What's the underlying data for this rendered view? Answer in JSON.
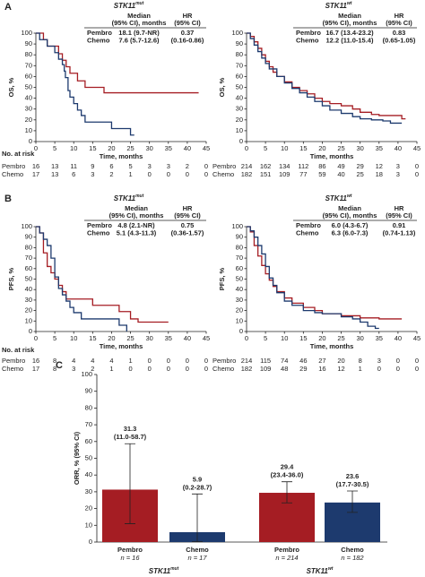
{
  "chart_data": [
    {
      "type": "km",
      "panel": "A",
      "title": "STK11",
      "title_sup": "mut",
      "ylabel": "OS, %",
      "xlabel": "Time, months",
      "xlim": [
        0,
        45
      ],
      "xticks": [
        0,
        5,
        10,
        15,
        20,
        25,
        30,
        35,
        40,
        45
      ],
      "ylim": [
        0,
        100
      ],
      "yticks": [
        0,
        10,
        20,
        30,
        40,
        50,
        60,
        70,
        80,
        90,
        100
      ],
      "legend_header": [
        "Median",
        "(95% CI), months"
      ],
      "hr_header": [
        "HR",
        "(95% CI)"
      ],
      "hr": 0.37,
      "hr_ci": "(0.16-0.86)",
      "risk_label": "No. at risk",
      "series": [
        {
          "name": "Pembro",
          "color": "#a51d23",
          "median": "18.1 (9.7-NR)",
          "x": [
            0,
            2,
            3,
            6,
            7,
            8,
            9,
            11,
            13,
            18,
            43
          ],
          "values": [
            100,
            94,
            88,
            81,
            75,
            69,
            63,
            56,
            50,
            45,
            45
          ],
          "at_risk": [
            16,
            13,
            11,
            9,
            6,
            5,
            3,
            3,
            2,
            0
          ]
        },
        {
          "name": "Chemo",
          "color": "#1d3a6e",
          "median": "7.6 (5.7-12.6)",
          "x": [
            0,
            1,
            3,
            5,
            6,
            7,
            7.5,
            7.8,
            8.5,
            9,
            10,
            11,
            12,
            13,
            20,
            25,
            26
          ],
          "values": [
            100,
            94,
            88,
            82,
            76,
            71,
            65,
            59,
            47,
            41,
            35,
            29,
            24,
            18,
            12,
            6,
            6
          ],
          "at_risk": [
            17,
            13,
            6,
            3,
            2,
            1,
            0,
            0,
            0,
            0
          ]
        }
      ]
    },
    {
      "type": "km",
      "title": "STK11",
      "title_sup": "wt",
      "ylabel": "OS, %",
      "xlabel": "Time, months",
      "xlim": [
        0,
        45
      ],
      "xticks": [
        0,
        5,
        10,
        15,
        20,
        25,
        30,
        35,
        40,
        45
      ],
      "ylim": [
        0,
        100
      ],
      "yticks": [
        0,
        10,
        20,
        30,
        40,
        50,
        60,
        70,
        80,
        90,
        100
      ],
      "legend_header": [
        "Median",
        "(95% CI), months"
      ],
      "hr_header": [
        "HR",
        "(95% CI)"
      ],
      "hr": 0.83,
      "hr_ci": "(0.65-1.05)",
      "series": [
        {
          "name": "Pembro",
          "color": "#a51d23",
          "median": "16.7 (13.4-23.2)",
          "x": [
            0,
            1,
            2,
            3,
            4,
            5,
            6,
            7,
            8,
            10,
            12,
            14,
            16,
            18,
            20,
            22,
            25,
            28,
            30,
            33,
            35,
            41,
            42
          ],
          "values": [
            100,
            97,
            92,
            86,
            80,
            74,
            69,
            64,
            60,
            55,
            50,
            47,
            44,
            40,
            37,
            35,
            33,
            30,
            27,
            25,
            24,
            21,
            21
          ],
          "at_risk": [
            214,
            162,
            134,
            112,
            86,
            49,
            29,
            12,
            3,
            0
          ]
        },
        {
          "name": "Chemo",
          "color": "#1d3a6e",
          "median": "12.2 (11.0-15.4)",
          "x": [
            0,
            1,
            2,
            3,
            4,
            5,
            6,
            8,
            10,
            12,
            14,
            16,
            18,
            20,
            22,
            25,
            28,
            30,
            33,
            36,
            38,
            41
          ],
          "values": [
            100,
            95,
            89,
            83,
            77,
            72,
            67,
            60,
            54,
            49,
            45,
            41,
            37,
            33,
            29,
            26,
            23,
            21,
            20,
            19,
            17,
            17
          ],
          "at_risk": [
            182,
            151,
            109,
            77,
            59,
            40,
            25,
            18,
            3,
            0
          ]
        }
      ]
    },
    {
      "type": "km",
      "panel": "B",
      "title": "STK11",
      "title_sup": "mut",
      "ylabel": "PFS, %",
      "xlabel": "Time, months",
      "xlim": [
        0,
        45
      ],
      "xticks": [
        0,
        5,
        10,
        15,
        20,
        25,
        30,
        35,
        40,
        45
      ],
      "ylim": [
        0,
        100
      ],
      "yticks": [
        0,
        10,
        20,
        30,
        40,
        50,
        60,
        70,
        80,
        90,
        100
      ],
      "legend_header": [
        "Median",
        "(95% CI), months"
      ],
      "hr_header": [
        "HR",
        "(95% CI)"
      ],
      "hr": 0.75,
      "hr_ci": "(0.36-1.57)",
      "risk_label": "No. at risk",
      "series": [
        {
          "name": "Pembro",
          "color": "#a51d23",
          "median": "4.8 (2.1-NR)",
          "x": [
            0,
            1,
            2,
            3,
            4,
            5,
            6,
            7,
            8,
            15,
            22,
            25,
            27,
            35
          ],
          "values": [
            100,
            94,
            75,
            62,
            56,
            50,
            44,
            38,
            31,
            25,
            19,
            12,
            9,
            9
          ],
          "at_risk": [
            16,
            8,
            4,
            4,
            4,
            1,
            0,
            0,
            0,
            0
          ]
        },
        {
          "name": "Chemo",
          "color": "#1d3a6e",
          "median": "5.1 (4.3-11.3)",
          "x": [
            0,
            1,
            2,
            3,
            4,
            5,
            6,
            7,
            8,
            9,
            10,
            12,
            22,
            24
          ],
          "values": [
            100,
            94,
            88,
            82,
            70,
            52,
            41,
            35,
            29,
            23,
            18,
            12,
            6,
            0
          ],
          "at_risk": [
            17,
            8,
            3,
            2,
            1,
            0,
            0,
            0,
            0,
            0
          ]
        }
      ]
    },
    {
      "type": "km",
      "title": "STK11",
      "title_sup": "wt",
      "ylabel": "PFS, %",
      "xlabel": "Time, months",
      "xlim": [
        0,
        45
      ],
      "xticks": [
        0,
        5,
        10,
        15,
        20,
        25,
        30,
        35,
        40,
        45
      ],
      "ylim": [
        0,
        100
      ],
      "yticks": [
        0,
        10,
        20,
        30,
        40,
        50,
        60,
        70,
        80,
        90,
        100
      ],
      "legend_header": [
        "Median",
        "(95% CI), months"
      ],
      "hr_header": [
        "HR",
        "(95% CI)"
      ],
      "hr": 0.91,
      "hr_ci": "(0.74-1.13)",
      "series": [
        {
          "name": "Pembro",
          "color": "#a51d23",
          "median": "6.0 (4.3-6.7)",
          "x": [
            0,
            1,
            2,
            3,
            4,
            5,
            6,
            7,
            8,
            10,
            12,
            15,
            18,
            20,
            25,
            30,
            35,
            41
          ],
          "values": [
            100,
            95,
            82,
            72,
            63,
            55,
            49,
            43,
            38,
            32,
            27,
            23,
            20,
            17,
            15,
            13,
            12,
            12
          ],
          "at_risk": [
            214,
            115,
            74,
            46,
            27,
            20,
            8,
            3,
            0,
            0
          ]
        },
        {
          "name": "Chemo",
          "color": "#1d3a6e",
          "median": "6.3 (6.0-7.3)",
          "x": [
            0,
            1,
            2,
            3,
            4,
            5,
            6,
            7,
            8,
            10,
            12,
            15,
            18,
            20,
            25,
            28,
            30,
            32,
            34,
            35
          ],
          "values": [
            100,
            96,
            90,
            82,
            74,
            62,
            51,
            44,
            37,
            29,
            25,
            20,
            18,
            17,
            14,
            12,
            9,
            5,
            3,
            3
          ],
          "at_risk": [
            182,
            109,
            48,
            29,
            16,
            12,
            1,
            0,
            0,
            0
          ]
        }
      ]
    },
    {
      "type": "bar",
      "panel": "C",
      "ylabel": "ORR, % (95% CI)",
      "ylim": [
        0,
        100
      ],
      "yticks": [
        0,
        10,
        20,
        30,
        40,
        50,
        60,
        70,
        80,
        90,
        100
      ],
      "categories": [
        "Pembro",
        "Chemo",
        "Pembro",
        "Chemo"
      ],
      "n_labels": [
        "n = 16",
        "n = 17",
        "n = 214",
        "n = 182"
      ],
      "colors": [
        "#a51d23",
        "#1d3a6e",
        "#a51d23",
        "#1d3a6e"
      ],
      "values": [
        31.3,
        5.9,
        29.4,
        23.6
      ],
      "ci_low": [
        11.0,
        0.2,
        23.4,
        17.7
      ],
      "ci_high": [
        58.7,
        28.7,
        36.0,
        30.5
      ],
      "ci_labels": [
        "(11.0-58.7)",
        "(0.2-28.7)",
        "(23.4-36.0)",
        "(17.7-30.5)"
      ],
      "groups": [
        {
          "title": "STK11",
          "title_sup": "mut"
        },
        {
          "title": "STK11",
          "title_sup": "wt"
        }
      ]
    }
  ]
}
